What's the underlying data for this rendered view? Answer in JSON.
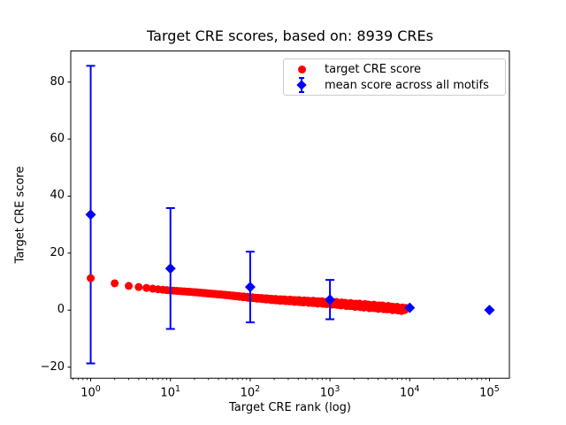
{
  "chart_data": {
    "type": "scatter",
    "title": "Target CRE scores, based on: 8939 CREs",
    "xlabel": "Target CRE rank (log)",
    "ylabel": "Target CRE score",
    "x_scale": "log",
    "xlim_log10": [
      -0.25,
      5.25
    ],
    "ylim": [
      -23.9,
      90.9
    ],
    "xtick_exponents": [
      0,
      1,
      2,
      3,
      4,
      5
    ],
    "yticks": [
      -20,
      0,
      20,
      40,
      60,
      80
    ],
    "grid": false,
    "legend_position": "upper right",
    "series": [
      {
        "name": "target CRE score",
        "type": "scatter",
        "marker": "circle",
        "color": "#ff0000",
        "n_points": 8939,
        "note": "red dots at integer ranks 1..8939 forming a dense descending band; sampled anchor values below",
        "anchors": [
          [
            1,
            11.2
          ],
          [
            2,
            9.4
          ],
          [
            3,
            8.5
          ],
          [
            4,
            8.1
          ],
          [
            5,
            7.8
          ],
          [
            7,
            7.3
          ],
          [
            10,
            6.9
          ],
          [
            20,
            6.3
          ],
          [
            50,
            5.3
          ],
          [
            100,
            4.4
          ],
          [
            200,
            3.7
          ],
          [
            500,
            3.0
          ],
          [
            1000,
            2.5
          ],
          [
            2000,
            1.8
          ],
          [
            5000,
            0.9
          ],
          [
            8939,
            0.2
          ]
        ]
      },
      {
        "name": "mean score across all motifs",
        "type": "errorbar",
        "marker": "diamond",
        "color": "#0000ff",
        "points": [
          {
            "x": 1,
            "y": 33.5,
            "yerr": 52.2
          },
          {
            "x": 10,
            "y": 14.6,
            "yerr": 21.2
          },
          {
            "x": 100,
            "y": 8.1,
            "yerr": 12.4
          },
          {
            "x": 1000,
            "y": 3.7,
            "yerr": 6.9
          },
          {
            "x": 10000,
            "y": 0.8,
            "yerr": 0
          },
          {
            "x": 100000,
            "y": 0.05,
            "yerr": 0
          }
        ]
      }
    ]
  },
  "colors": {
    "target_series": "#ff0000",
    "mean_series": "#0000ff",
    "axes": "#000000",
    "legend_border": "#cccccc",
    "background": "#ffffff"
  }
}
